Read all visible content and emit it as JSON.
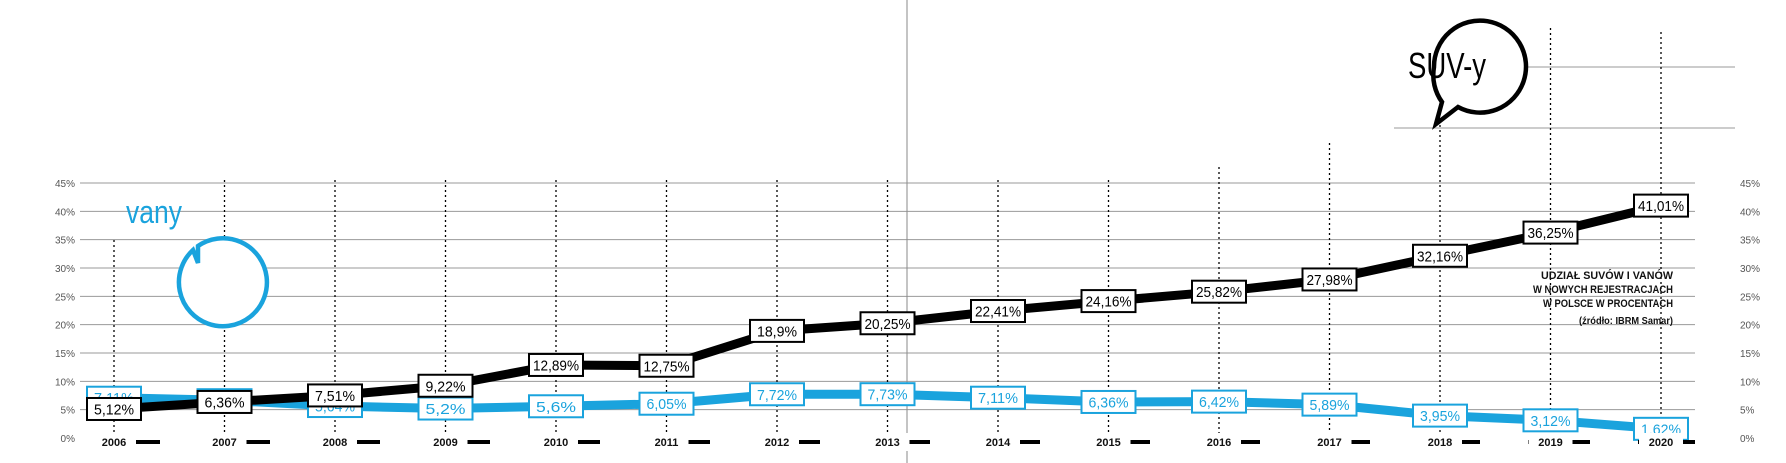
{
  "chart_data": {
    "type": "line",
    "categories": [
      "2006",
      "2007",
      "2008",
      "2009",
      "2010",
      "2011",
      "2012",
      "2013",
      "2014",
      "2015",
      "2016",
      "2017",
      "2018",
      "2019",
      "2020"
    ],
    "series": [
      {
        "name": "SUV-y",
        "color": "#000000",
        "values": [
          5.12,
          6.36,
          7.51,
          9.22,
          12.89,
          12.75,
          18.9,
          20.25,
          22.41,
          24.16,
          25.82,
          27.98,
          32.16,
          36.25,
          41.01
        ],
        "labels": [
          "5,12%",
          "6,36%",
          "7,51%",
          "9,22%",
          "12,89%",
          "12,75%",
          "18,9%",
          "20,25%",
          "22,41%",
          "24,16%",
          "25,82%",
          "27,98%",
          "32,16%",
          "36,25%",
          "41,01%"
        ]
      },
      {
        "name": "vany",
        "color": "#1aa3dd",
        "values": [
          7.11,
          6.67,
          5.64,
          5.2,
          5.6,
          6.05,
          7.72,
          7.73,
          7.11,
          6.36,
          6.42,
          5.89,
          3.95,
          3.12,
          1.62
        ],
        "labels": [
          "7,11%",
          "6,67%",
          "5,64%",
          "5,2%",
          "5,6%",
          "6,05%",
          "7,72%",
          "7,73%",
          "7,11%",
          "6,36%",
          "6,42%",
          "5,89%",
          "3,95%",
          "3,12%",
          "1,62%"
        ]
      }
    ],
    "ylim": [
      0,
      45
    ],
    "yticks": [
      0,
      5,
      10,
      15,
      20,
      25,
      30,
      35,
      40,
      45
    ],
    "ytick_labels": [
      "0%",
      "5%",
      "10%",
      "15%",
      "20%",
      "25%",
      "30%",
      "35%",
      "40%",
      "45%"
    ],
    "grid": true,
    "title_lines": [
      "UDZIAŁ SUVÓW I VANÓW",
      "W NOWYCH REJESTRACJACH",
      "W POLSCE W PROCENTACH"
    ],
    "source": "(źródło: IBRM Samar)",
    "suv_bubble": "SUV-y",
    "van_bubble": "vany"
  }
}
